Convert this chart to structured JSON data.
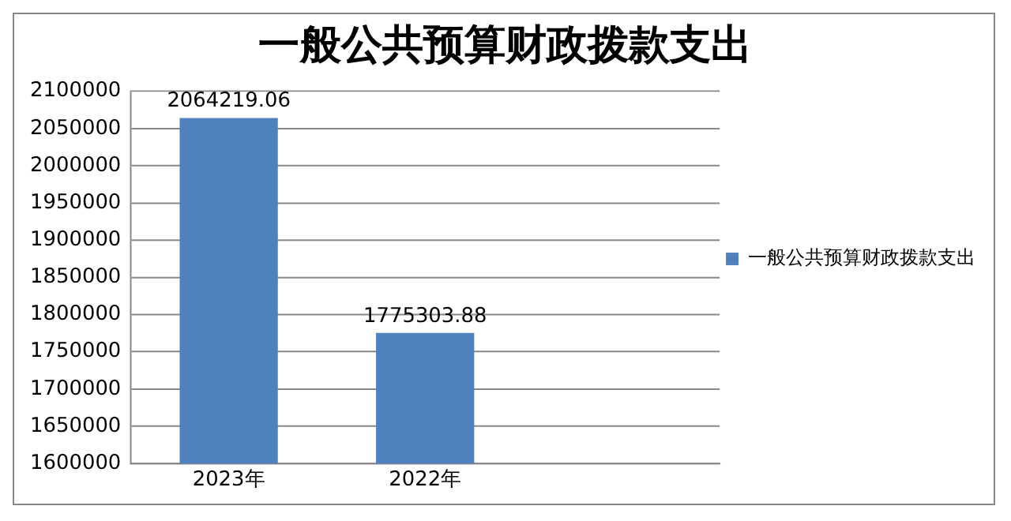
{
  "chart_data": {
    "type": "bar",
    "title": "一般公共预算财政拨款支出",
    "categories": [
      "2023年",
      "2022年",
      null
    ],
    "series": [
      {
        "name": "一般公共预算财政拨款支出",
        "color": "#4f81bd",
        "values": [
          2064219.06,
          1775303.88,
          null
        ]
      }
    ],
    "ylim": [
      1600000,
      2100000
    ],
    "yticks": [
      1600000,
      1650000,
      1700000,
      1750000,
      1800000,
      1850000,
      1900000,
      1950000,
      2000000,
      2050000,
      2100000
    ],
    "grid": "y",
    "legend": "right",
    "data_labels": true
  }
}
